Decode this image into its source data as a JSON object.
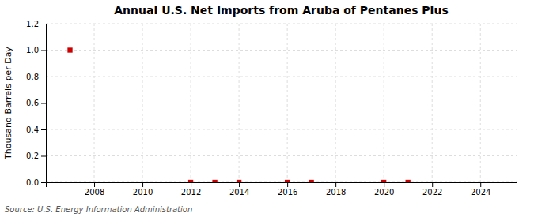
{
  "chart_data": {
    "type": "scatter",
    "title": "Annual U.S. Net Imports from Aruba of Pentanes Plus",
    "ylabel": "Thousand Barrels per Day",
    "annotations": [
      "Source: U.S. Energy Information Administration"
    ],
    "x": [
      2007,
      2012,
      2013,
      2014,
      2016,
      2017,
      2020,
      2021
    ],
    "values": [
      1.0,
      0.0,
      0.0,
      0.0,
      0.0,
      0.0,
      0.0,
      0.0
    ],
    "color": "#cc0000",
    "marker": "square",
    "xlim": [
      2006.0,
      2025.5
    ],
    "xticks": [
      2008,
      2010,
      2012,
      2014,
      2016,
      2018,
      2020,
      2022,
      2024
    ],
    "ylim": [
      0.0,
      1.2
    ],
    "yticks": [
      {
        "value": 0.0,
        "label": "0.0"
      },
      0.2,
      0.4,
      0.6,
      0.8,
      {
        "value": 1.0,
        "label": "1.0"
      },
      1.2
    ],
    "grid": true
  }
}
